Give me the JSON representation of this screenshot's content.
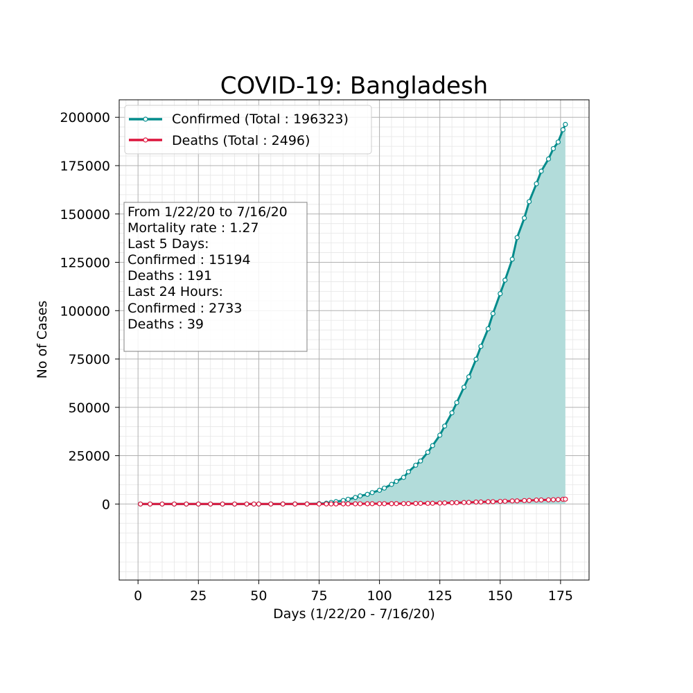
{
  "chart_data": {
    "type": "line",
    "title": "COVID-19: Bangladesh",
    "xlabel": "Days (1/22/20 - 7/16/20)",
    "ylabel": "No of Cases",
    "xlim": [
      -7.8,
      186.8
    ],
    "ylim": [
      -39316,
      209046
    ],
    "xticks": [
      0,
      25,
      50,
      75,
      100,
      125,
      150,
      175
    ],
    "yticks": [
      0,
      25000,
      50000,
      75000,
      100000,
      125000,
      150000,
      175000,
      200000
    ],
    "grid": "major and minor",
    "legend_position": "top-left",
    "fill_under": "Confirmed",
    "colors": {
      "confirmed": "#008b8b",
      "deaths": "#dc143c",
      "fill": "#b2dcda"
    },
    "series": [
      {
        "name": "Confirmed (Total : 196323)",
        "key": "confirmed",
        "x": [
          1,
          5,
          10,
          15,
          20,
          25,
          30,
          35,
          40,
          45,
          48,
          50,
          55,
          60,
          65,
          70,
          75,
          78,
          80,
          82,
          85,
          87,
          90,
          92,
          95,
          97,
          100,
          102,
          105,
          107,
          110,
          112,
          115,
          117,
          120,
          122,
          125,
          127,
          130,
          132,
          135,
          137,
          140,
          142,
          145,
          147,
          150,
          152,
          155,
          157,
          160,
          162,
          165,
          167,
          170,
          172,
          174,
          176,
          177
        ],
        "values": [
          0,
          0,
          0,
          0,
          0,
          0,
          0,
          0,
          0,
          0,
          3,
          10,
          24,
          39,
          48,
          61,
          218,
          424,
          803,
          1231,
          1838,
          2456,
          3382,
          4186,
          4998,
          5913,
          7103,
          8238,
          10143,
          11719,
          13770,
          16660,
          20065,
          22268,
          26738,
          30205,
          35585,
          40321,
          47153,
          52445,
          60391,
          65769,
          74865,
          81523,
          90619,
          98489,
          108775,
          115786,
          126606,
          137787,
          147877,
          156391,
          165618,
          172134,
          178443,
          183795,
          187200,
          193590,
          196323
        ]
      },
      {
        "name": "Deaths (Total : 2496)",
        "key": "deaths",
        "x": [
          1,
          5,
          10,
          15,
          20,
          25,
          30,
          35,
          40,
          45,
          48,
          50,
          55,
          60,
          65,
          70,
          75,
          78,
          80,
          82,
          85,
          87,
          90,
          92,
          95,
          97,
          100,
          102,
          105,
          107,
          110,
          112,
          115,
          117,
          120,
          122,
          125,
          127,
          130,
          132,
          135,
          137,
          140,
          142,
          145,
          147,
          150,
          152,
          155,
          157,
          160,
          162,
          165,
          167,
          170,
          172,
          174,
          176,
          177
        ],
        "values": [
          0,
          0,
          0,
          0,
          0,
          0,
          0,
          0,
          0,
          0,
          0,
          1,
          2,
          4,
          5,
          6,
          20,
          39,
          46,
          50,
          75,
          91,
          101,
          120,
          140,
          155,
          168,
          175,
          183,
          199,
          214,
          228,
          298,
          328,
          349,
          370,
          480,
          559,
          650,
          709,
          781,
          839,
          1012,
          1049,
          1171,
          1209,
          1343,
          1425,
          1582,
          1621,
          1783,
          1847,
          2052,
          2096,
          2151,
          2238,
          2305,
          2457,
          2496
        ]
      }
    ],
    "legend": [
      "Confirmed (Total : 196323)",
      "Deaths (Total : 2496)"
    ],
    "annotation_lines": [
      "From 1/22/20 to 7/16/20",
      "Mortality rate : 1.27",
      "Last 5 Days:",
      "Confirmed : 15194",
      "Deaths : 191",
      "Last 24 Hours:",
      "Confirmed : 2733",
      "Deaths : 39"
    ]
  }
}
